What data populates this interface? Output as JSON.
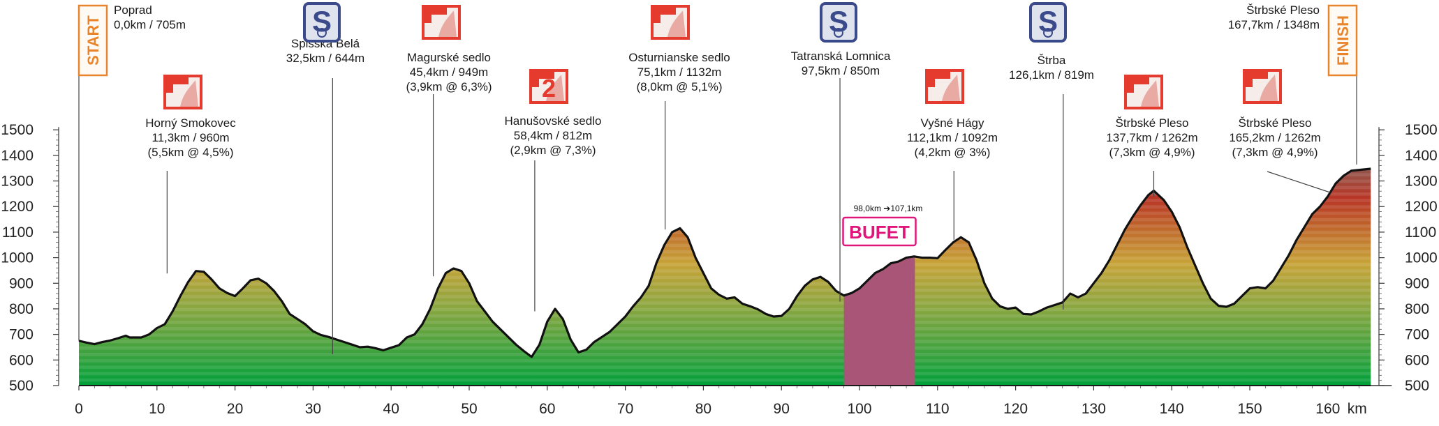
{
  "chart_data": {
    "type": "area",
    "x_unit": "km",
    "xlim": [
      0,
      165.5
    ],
    "ylim": [
      500,
      1500
    ],
    "x_ticks": [
      0,
      10,
      20,
      30,
      40,
      50,
      60,
      70,
      80,
      90,
      100,
      110,
      120,
      130,
      140,
      150,
      160
    ],
    "y_ticks": [
      500,
      600,
      700,
      800,
      900,
      1000,
      1100,
      1200,
      1300,
      1400,
      1500
    ],
    "start_label": "START",
    "finish_label": "FINISH",
    "profile": [
      [
        0,
        675
      ],
      [
        1,
        668
      ],
      [
        2,
        662
      ],
      [
        3,
        670
      ],
      [
        4,
        676
      ],
      [
        5,
        685
      ],
      [
        6,
        695
      ],
      [
        6.5,
        688
      ],
      [
        8,
        688
      ],
      [
        9,
        700
      ],
      [
        10,
        725
      ],
      [
        11,
        740
      ],
      [
        12,
        790
      ],
      [
        13,
        850
      ],
      [
        14,
        905
      ],
      [
        15,
        948
      ],
      [
        16,
        945
      ],
      [
        17,
        915
      ],
      [
        18,
        880
      ],
      [
        19,
        862
      ],
      [
        20,
        850
      ],
      [
        21,
        880
      ],
      [
        22,
        912
      ],
      [
        23,
        918
      ],
      [
        24,
        900
      ],
      [
        25,
        870
      ],
      [
        26,
        830
      ],
      [
        27,
        780
      ],
      [
        28,
        760
      ],
      [
        29,
        740
      ],
      [
        30,
        712
      ],
      [
        31,
        698
      ],
      [
        32,
        690
      ],
      [
        33,
        680
      ],
      [
        34,
        670
      ],
      [
        35,
        660
      ],
      [
        36,
        650
      ],
      [
        37,
        652
      ],
      [
        38,
        646
      ],
      [
        39,
        638
      ],
      [
        40,
        648
      ],
      [
        41,
        658
      ],
      [
        42,
        688
      ],
      [
        43,
        700
      ],
      [
        44,
        740
      ],
      [
        45,
        800
      ],
      [
        46,
        880
      ],
      [
        47,
        940
      ],
      [
        48,
        958
      ],
      [
        49,
        948
      ],
      [
        50,
        900
      ],
      [
        51,
        830
      ],
      [
        52,
        790
      ],
      [
        53,
        750
      ],
      [
        54,
        720
      ],
      [
        55,
        690
      ],
      [
        56,
        660
      ],
      [
        57,
        635
      ],
      [
        58,
        612
      ],
      [
        59,
        660
      ],
      [
        60,
        750
      ],
      [
        61,
        800
      ],
      [
        62,
        760
      ],
      [
        63,
        680
      ],
      [
        64,
        630
      ],
      [
        65,
        640
      ],
      [
        66,
        670
      ],
      [
        67,
        690
      ],
      [
        68,
        710
      ],
      [
        69,
        740
      ],
      [
        70,
        770
      ],
      [
        71,
        810
      ],
      [
        72,
        845
      ],
      [
        73,
        890
      ],
      [
        74,
        980
      ],
      [
        75,
        1050
      ],
      [
        76,
        1100
      ],
      [
        77,
        1115
      ],
      [
        78,
        1080
      ],
      [
        79,
        1000
      ],
      [
        80,
        940
      ],
      [
        81,
        880
      ],
      [
        82,
        855
      ],
      [
        83,
        840
      ],
      [
        84,
        845
      ],
      [
        85,
        820
      ],
      [
        86,
        810
      ],
      [
        87,
        798
      ],
      [
        88,
        780
      ],
      [
        89,
        770
      ],
      [
        90,
        772
      ],
      [
        91,
        800
      ],
      [
        92,
        850
      ],
      [
        93,
        890
      ],
      [
        94,
        915
      ],
      [
        95,
        925
      ],
      [
        96,
        905
      ],
      [
        97,
        870
      ],
      [
        98,
        852
      ],
      [
        99,
        862
      ],
      [
        100,
        880
      ],
      [
        101,
        910
      ],
      [
        102,
        940
      ],
      [
        103,
        955
      ],
      [
        104,
        978
      ],
      [
        105,
        985
      ],
      [
        106,
        1000
      ],
      [
        107,
        1005
      ],
      [
        108,
        1000
      ],
      [
        109,
        1000
      ],
      [
        110,
        998
      ],
      [
        111,
        1030
      ],
      [
        112,
        1060
      ],
      [
        113,
        1080
      ],
      [
        114,
        1060
      ],
      [
        115,
        990
      ],
      [
        116,
        900
      ],
      [
        117,
        840
      ],
      [
        118,
        810
      ],
      [
        119,
        800
      ],
      [
        120,
        805
      ],
      [
        121,
        780
      ],
      [
        122,
        778
      ],
      [
        123,
        790
      ],
      [
        124,
        805
      ],
      [
        125,
        815
      ],
      [
        126,
        825
      ],
      [
        127,
        860
      ],
      [
        128,
        845
      ],
      [
        129,
        860
      ],
      [
        130,
        900
      ],
      [
        131,
        940
      ],
      [
        132,
        990
      ],
      [
        133,
        1050
      ],
      [
        134,
        1110
      ],
      [
        135,
        1160
      ],
      [
        136,
        1205
      ],
      [
        137,
        1245
      ],
      [
        137.7,
        1262
      ],
      [
        139,
        1225
      ],
      [
        140,
        1180
      ],
      [
        141,
        1120
      ],
      [
        142,
        1040
      ],
      [
        143,
        970
      ],
      [
        144,
        900
      ],
      [
        145,
        840
      ],
      [
        146,
        812
      ],
      [
        147,
        808
      ],
      [
        148,
        820
      ],
      [
        149,
        850
      ],
      [
        150,
        880
      ],
      [
        151,
        885
      ],
      [
        152,
        880
      ],
      [
        153,
        910
      ],
      [
        154,
        960
      ],
      [
        155,
        1010
      ],
      [
        156,
        1070
      ],
      [
        157,
        1120
      ],
      [
        158,
        1170
      ],
      [
        159,
        1200
      ],
      [
        160,
        1240
      ],
      [
        161,
        1290
      ],
      [
        162,
        1320
      ],
      [
        163,
        1340
      ],
      [
        165.5,
        1348
      ]
    ],
    "buffet": {
      "label": "BUFET",
      "range_text": "98,0km ➔107,1km",
      "from_km": 98.0,
      "to_km": 107.1
    },
    "waypoints": [
      {
        "km": 0.0,
        "alt": 705,
        "lines": [
          "Poprad",
          "0,0km /  705m"
        ],
        "icon": "none"
      },
      {
        "km": 11.3,
        "alt": 960,
        "lines": [
          "Horný Smokovec",
          "11,3km / 960m",
          "(5,5km @ 4,5%)"
        ],
        "icon": "climb-category-3-icon"
      },
      {
        "km": 32.5,
        "alt": 644,
        "lines": [
          "Spišská Belá",
          "32,5km / 644m"
        ],
        "icon": "sprint-icon"
      },
      {
        "km": 45.4,
        "alt": 949,
        "lines": [
          "Magurské sedlo",
          "45,4km / 949m",
          "(3,9km @ 6,3%)"
        ],
        "icon": "climb-category-3-icon"
      },
      {
        "km": 58.4,
        "alt": 812,
        "lines": [
          "Hanušovské sedlo",
          "58,4km / 812m",
          "(2,9km @ 7,3%)"
        ],
        "icon": "climb-category-2-icon"
      },
      {
        "km": 75.1,
        "alt": 1132,
        "lines": [
          "Osturnianske sedlo",
          "75,1km / 1132m",
          "(8,0km @ 5,1%)"
        ],
        "icon": "climb-category-3-icon"
      },
      {
        "km": 97.5,
        "alt": 850,
        "lines": [
          "Tatranská Lomnica",
          "97,5km / 850m"
        ],
        "icon": "sprint-icon"
      },
      {
        "km": 112.1,
        "alt": 1092,
        "lines": [
          "Vyšné Hágy",
          "112,1km / 1092m",
          "(4,2km @ 3%)"
        ],
        "icon": "climb-category-3-icon"
      },
      {
        "km": 126.1,
        "alt": 819,
        "lines": [
          "Štrba",
          "126,1km / 819m"
        ],
        "icon": "sprint-icon"
      },
      {
        "km": 137.7,
        "alt": 1262,
        "lines": [
          "Štrbské Pleso",
          "137,7km / 1262m",
          "(7,3km @ 4,9%)"
        ],
        "icon": "climb-category-3-icon"
      },
      {
        "km": 165.2,
        "alt": 1262,
        "lines": [
          "Štrbské Pleso",
          "165,2km / 1262m",
          "(7,3km @ 4,9%)"
        ],
        "icon": "climb-category-3-icon"
      },
      {
        "km": 167.7,
        "alt": 1348,
        "lines": [
          "Štrbské Pleso",
          "167,7km / 1348m"
        ],
        "icon": "none"
      }
    ],
    "colors": {
      "low": "#0aa13c",
      "mid_green": "#7aa640",
      "mid": "#c9a83a",
      "high": "#c0392b",
      "top": "#b5b0ad",
      "buffet_fill": "#a85577",
      "start_finish": "#e8852c",
      "climb_icon": "#e53a2e",
      "sprint_icon": "#3b4a8a"
    }
  }
}
